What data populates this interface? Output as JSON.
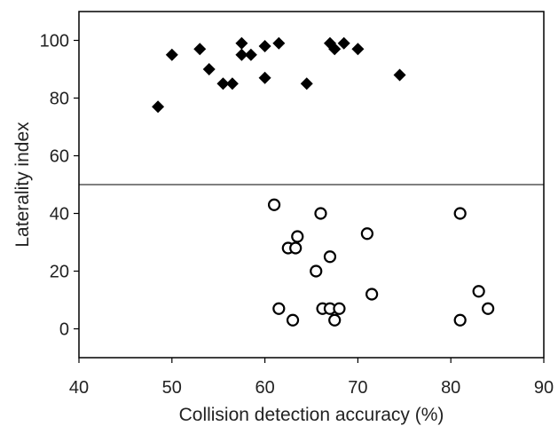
{
  "chart_data": {
    "type": "scatter",
    "title": "",
    "xlabel": "Collision detection accuracy (%)",
    "ylabel": "Laterality index",
    "xlim": [
      40,
      90
    ],
    "ylim": [
      -10,
      110
    ],
    "xticks": [
      40,
      50,
      60,
      70,
      80,
      90
    ],
    "yticks": [
      0,
      20,
      40,
      60,
      80,
      100
    ],
    "xtick_labels": [
      "40",
      "50",
      "60",
      "70",
      "80",
      "90"
    ],
    "ytick_labels": [
      "0",
      "20",
      "40",
      "60",
      "80",
      "100"
    ],
    "grid": false,
    "legend": "none",
    "reference_line_y": 50,
    "series": [
      {
        "marker": "filled-diamond",
        "color": "#000000",
        "points": [
          [
            48.5,
            77
          ],
          [
            50,
            95
          ],
          [
            53,
            97
          ],
          [
            54,
            90
          ],
          [
            55.5,
            85
          ],
          [
            56.5,
            85
          ],
          [
            57.5,
            99
          ],
          [
            57.5,
            95
          ],
          [
            58.5,
            95
          ],
          [
            60,
            98
          ],
          [
            60,
            87
          ],
          [
            61.5,
            99
          ],
          [
            64.5,
            85
          ],
          [
            67,
            99
          ],
          [
            67.5,
            97
          ],
          [
            68.5,
            99
          ],
          [
            70,
            97
          ],
          [
            74.5,
            88
          ]
        ]
      },
      {
        "marker": "open-circle",
        "color": "#000000",
        "points": [
          [
            61,
            43
          ],
          [
            66,
            40
          ],
          [
            81,
            40
          ],
          [
            71,
            33
          ],
          [
            63.5,
            32
          ],
          [
            62.5,
            28
          ],
          [
            63.3,
            28
          ],
          [
            67,
            25
          ],
          [
            65.5,
            20
          ],
          [
            71.5,
            12
          ],
          [
            83,
            13
          ],
          [
            61.5,
            7
          ],
          [
            63,
            3
          ],
          [
            66.2,
            7
          ],
          [
            67,
            7
          ],
          [
            67.5,
            3
          ],
          [
            68,
            7
          ],
          [
            81,
            3
          ],
          [
            84,
            7
          ]
        ]
      }
    ]
  }
}
